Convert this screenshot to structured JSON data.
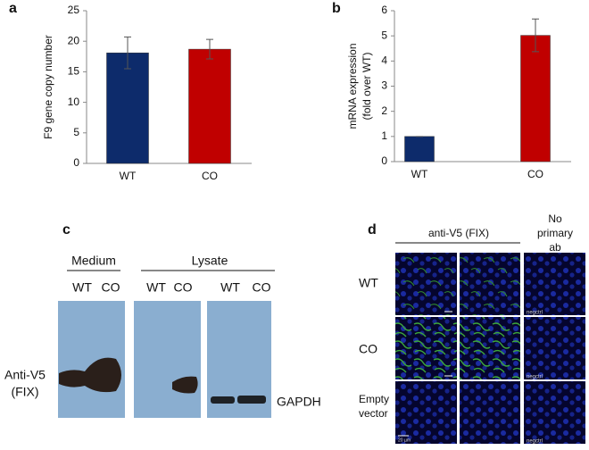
{
  "chart_data": [
    {
      "type": "bar",
      "panel": "a",
      "ylabel": "F9 gene copy number",
      "categories": [
        "WT",
        "CO"
      ],
      "values": [
        18.1,
        18.7
      ],
      "errors": [
        2.6,
        1.6
      ],
      "colors": [
        "#0d2b6b",
        "#c00000"
      ],
      "ylim": [
        0,
        25
      ],
      "yticks": [
        0,
        5,
        10,
        15,
        20,
        25
      ]
    },
    {
      "type": "bar",
      "panel": "b",
      "ylabel": [
        "mRNA  expression",
        "(fold over WT)"
      ],
      "categories": [
        "WT",
        "CO"
      ],
      "values": [
        1.0,
        5.02
      ],
      "errors": [
        0,
        0.65
      ],
      "colors": [
        "#0d2b6b",
        "#c00000"
      ],
      "ylim": [
        0,
        6
      ],
      "yticks": [
        0,
        1,
        2,
        3,
        4,
        5,
        6
      ]
    }
  ],
  "blot": {
    "panel": "c",
    "groups": [
      "Medium",
      "Lysate"
    ],
    "lanes": [
      "WT",
      "CO",
      "WT",
      "CO",
      "WT",
      "CO"
    ],
    "antibody": [
      "Anti-V5",
      "(FIX)"
    ],
    "control": "GAPDH"
  },
  "imaging": {
    "panel": "d",
    "header": "anti-V5 (FIX)",
    "control_header": [
      "No",
      "primary",
      "ab"
    ],
    "rows": [
      "WT",
      "CO",
      [
        "Empty",
        "vector"
      ]
    ],
    "image_tag": "negctrl",
    "scale_bar": "20 µm"
  }
}
